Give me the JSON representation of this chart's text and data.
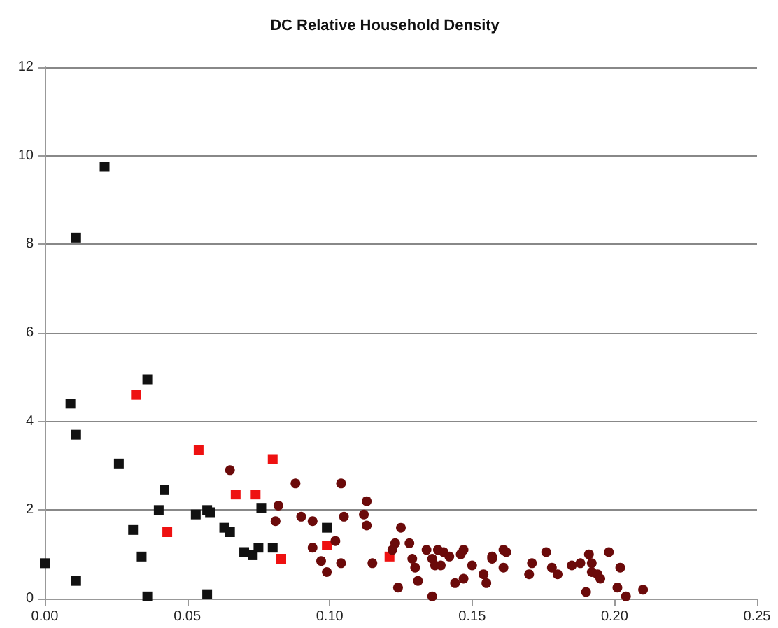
{
  "chart_data": {
    "type": "scatter",
    "title": "DC Relative Household Density",
    "xlim": [
      0,
      0.25
    ],
    "xticks": [
      {
        "value": 0,
        "label": "0.00"
      },
      {
        "value": 0.05,
        "label": "0.05"
      },
      {
        "value": 0.1,
        "label": "0.10"
      },
      {
        "value": 0.15,
        "label": "0.15"
      },
      {
        "value": 0.2,
        "label": "0.20"
      },
      {
        "value": 0.25,
        "label": "0.25"
      }
    ],
    "ylim": [
      0,
      12
    ],
    "yticks": [
      0,
      2,
      4,
      6,
      8,
      10,
      12
    ],
    "grid": "y",
    "series": [
      {
        "color": "#111111",
        "marker": "square",
        "x": [
          0.0,
          0.009,
          0.011,
          0.011,
          0.021,
          0.011,
          0.026,
          0.031,
          0.034,
          0.036,
          0.036,
          0.04,
          0.042,
          0.053,
          0.057,
          0.058,
          0.057,
          0.063,
          0.065,
          0.07,
          0.073,
          0.075,
          0.076,
          0.08,
          0.099
        ],
        "values": [
          0.8,
          4.4,
          3.7,
          8.15,
          9.75,
          0.4,
          3.05,
          1.55,
          0.95,
          4.95,
          0.05,
          2.0,
          2.45,
          1.9,
          2.0,
          1.95,
          0.1,
          1.6,
          1.5,
          1.05,
          0.98,
          1.15,
          2.05,
          1.15,
          1.6
        ]
      },
      {
        "color": "#ee1111",
        "marker": "square",
        "x": [
          0.032,
          0.054,
          0.043,
          0.067,
          0.074,
          0.08,
          0.083,
          0.099,
          0.121
        ],
        "values": [
          4.6,
          3.35,
          1.5,
          2.35,
          2.35,
          3.15,
          0.9,
          1.2,
          0.95
        ]
      },
      {
        "color": "#6b0a0a",
        "marker": "circle",
        "x": [
          0.065,
          0.088,
          0.082,
          0.081,
          0.104,
          0.113,
          0.09,
          0.094,
          0.105,
          0.112,
          0.113,
          0.102,
          0.094,
          0.097,
          0.099,
          0.104,
          0.115,
          0.125,
          0.123,
          0.122,
          0.128,
          0.129,
          0.13,
          0.124,
          0.131,
          0.134,
          0.136,
          0.137,
          0.136,
          0.138,
          0.14,
          0.142,
          0.139,
          0.144,
          0.147,
          0.147,
          0.146,
          0.15,
          0.154,
          0.155,
          0.157,
          0.157,
          0.161,
          0.162,
          0.161,
          0.17,
          0.171,
          0.176,
          0.178,
          0.18,
          0.185,
          0.188,
          0.19,
          0.191,
          0.192,
          0.192,
          0.194,
          0.195,
          0.198,
          0.202,
          0.201,
          0.204,
          0.21
        ],
        "values": [
          2.9,
          2.6,
          2.1,
          1.75,
          2.6,
          2.2,
          1.85,
          1.75,
          1.85,
          1.9,
          1.65,
          1.3,
          1.15,
          0.85,
          0.6,
          0.8,
          0.8,
          1.6,
          1.25,
          1.1,
          1.25,
          0.9,
          0.7,
          0.25,
          0.4,
          1.1,
          0.9,
          0.75,
          0.05,
          1.1,
          1.05,
          0.95,
          0.75,
          0.35,
          0.45,
          1.1,
          1.0,
          0.75,
          0.55,
          0.35,
          0.95,
          0.9,
          1.1,
          1.05,
          0.7,
          0.55,
          0.8,
          1.05,
          0.7,
          0.55,
          0.75,
          0.8,
          0.15,
          1.0,
          0.8,
          0.6,
          0.55,
          0.45,
          1.05,
          0.7,
          0.25,
          0.05,
          0.2
        ]
      }
    ]
  }
}
